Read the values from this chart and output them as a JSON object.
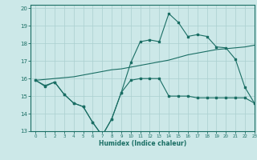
{
  "xlabel": "Humidex (Indice chaleur)",
  "bg_color": "#cce8e8",
  "grid_color": "#aacfcf",
  "line_color": "#1a6e64",
  "xlim": [
    -0.5,
    23
  ],
  "ylim": [
    13,
    20.2
  ],
  "yticks": [
    13,
    14,
    15,
    16,
    17,
    18,
    19,
    20
  ],
  "xticks": [
    0,
    1,
    2,
    3,
    4,
    5,
    6,
    7,
    8,
    9,
    10,
    11,
    12,
    13,
    14,
    15,
    16,
    17,
    18,
    19,
    20,
    21,
    22,
    23
  ],
  "line1_x": [
    0,
    1,
    2,
    3,
    4,
    5,
    6,
    7,
    8,
    9,
    10,
    11,
    12,
    13,
    14,
    15,
    16,
    17,
    18,
    19,
    20,
    21,
    22,
    23
  ],
  "line1_y": [
    15.9,
    15.6,
    15.8,
    15.1,
    14.6,
    14.4,
    13.5,
    12.75,
    13.7,
    15.2,
    15.9,
    16.0,
    16.0,
    16.0,
    15.0,
    15.0,
    15.0,
    14.9,
    14.9,
    14.9,
    14.9,
    14.9,
    14.9,
    14.6
  ],
  "line2_x": [
    0,
    1,
    2,
    3,
    4,
    5,
    6,
    7,
    8,
    9,
    10,
    11,
    12,
    13,
    14,
    15,
    16,
    17,
    18,
    19,
    20,
    21,
    22,
    23
  ],
  "line2_y": [
    15.9,
    15.95,
    16.0,
    16.05,
    16.1,
    16.2,
    16.3,
    16.4,
    16.5,
    16.55,
    16.65,
    16.75,
    16.85,
    16.95,
    17.05,
    17.2,
    17.35,
    17.45,
    17.55,
    17.65,
    17.7,
    17.75,
    17.8,
    17.9
  ],
  "line3_x": [
    0,
    1,
    2,
    3,
    4,
    5,
    6,
    7,
    8,
    9,
    10,
    11,
    12,
    13,
    14,
    15,
    16,
    17,
    18,
    19,
    20,
    21,
    22,
    23
  ],
  "line3_y": [
    15.9,
    15.55,
    15.8,
    15.1,
    14.6,
    14.4,
    13.5,
    12.75,
    13.7,
    15.2,
    16.9,
    18.1,
    18.2,
    18.1,
    19.7,
    19.2,
    18.4,
    18.5,
    18.4,
    17.8,
    17.75,
    17.1,
    15.5,
    14.6
  ]
}
